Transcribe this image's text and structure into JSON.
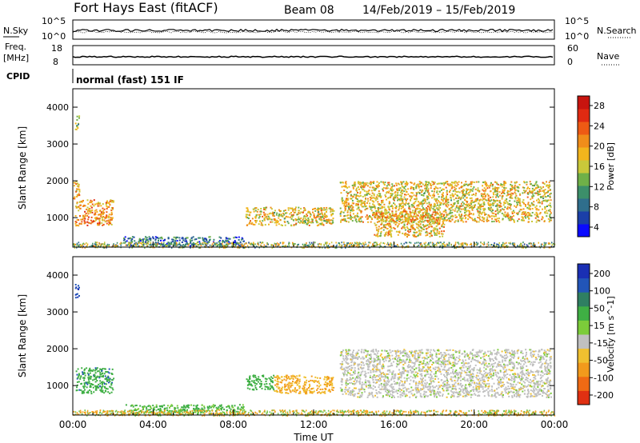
{
  "header": {
    "title": "Fort Hays East (fitACF)",
    "beam": "Beam 08",
    "date_range": "14/Feb/2019 – 15/Feb/2019"
  },
  "strips": {
    "nsky_label": "N.Sky",
    "nsky_ticks": [
      "10^5",
      "10^0"
    ],
    "nsearch_label": "N.Search",
    "nsearch_ticks": [
      "10^5",
      "10^0"
    ],
    "freq_label": [
      "Freq.",
      "[MHz]"
    ],
    "freq_ticks": [
      "18",
      "8"
    ],
    "nave_label": "Nave",
    "nave_ticks": [
      "60",
      "0"
    ],
    "cpid_label": "CPID",
    "cpid_text": "normal (fast) 151 IF"
  },
  "colors": {
    "power": [
      "#0a0aff",
      "#1b3fa8",
      "#2f6e8c",
      "#3c8f6a",
      "#6fb048",
      "#c9c83a",
      "#f2b51d",
      "#f08d1a",
      "#ee5a14",
      "#e02a12",
      "#c8140f"
    ],
    "velocity": [
      "#1a2fb4",
      "#2255b8",
      "#2f7f62",
      "#3faf44",
      "#7ccc3a",
      "#c0c0c0",
      "#f0c030",
      "#f29a1c",
      "#ef6a14",
      "#e03012"
    ],
    "scatter_green": "#6fc24a",
    "scatter_orange": "#f2a21c",
    "scatter_gray": "#c2c2c2"
  },
  "chart_data": [
    {
      "type": "heatmap",
      "name": "Power",
      "xlabel": "",
      "ylabel": "Slant Range [km]",
      "ylim": [
        200,
        4500
      ],
      "yticks": [
        "1000",
        "2000",
        "3000",
        "4000"
      ],
      "xlim_hours": [
        0,
        24
      ],
      "colorbar_label": "Power [dB]",
      "colorbar_ticks": [
        "28",
        "24",
        "20",
        "16",
        "12",
        "8",
        "4"
      ],
      "colorbar_range": [
        0,
        32
      ],
      "regions": [
        {
          "t_start": 0.1,
          "t_end": 2.0,
          "range_low": 800,
          "range_high": 1500,
          "power_db": 22
        },
        {
          "t_start": 0.0,
          "t_end": 0.3,
          "range_low": 1500,
          "range_high": 2000,
          "power_db": 20
        },
        {
          "t_start": 0.1,
          "t_end": 0.3,
          "range_low": 3400,
          "range_high": 3800,
          "power_db": 14
        },
        {
          "t_start": 8.6,
          "t_end": 13.0,
          "range_low": 800,
          "range_high": 1300,
          "power_db": 18
        },
        {
          "t_start": 13.3,
          "t_end": 23.8,
          "range_low": 900,
          "range_high": 2000,
          "power_db": 18
        },
        {
          "t_start": 15.0,
          "t_end": 18.5,
          "range_low": 500,
          "range_high": 1200,
          "power_db": 20
        },
        {
          "t_start": 2.5,
          "t_end": 8.5,
          "range_low": 250,
          "range_high": 500,
          "power_db": 6
        }
      ]
    },
    {
      "type": "heatmap",
      "name": "Velocity",
      "xlabel": "Time UT",
      "ylabel": "Slant Range [km]",
      "ylim": [
        200,
        4500
      ],
      "yticks": [
        "1000",
        "2000",
        "3000",
        "4000"
      ],
      "xlim_hours": [
        0,
        24
      ],
      "xticks": [
        "00:00",
        "04:00",
        "08:00",
        "12:00",
        "16:00",
        "20:00",
        "00:00"
      ],
      "colorbar_label": "Velocity [m s^-1]",
      "colorbar_ticks": [
        "200",
        "100",
        "50",
        "15",
        "-15",
        "-50",
        "-100",
        "-200"
      ],
      "regions": [
        {
          "t_start": 0.1,
          "t_end": 2.0,
          "range_low": 800,
          "range_high": 1500,
          "velocity": 60
        },
        {
          "t_start": 0.1,
          "t_end": 0.3,
          "range_low": 3400,
          "range_high": 3800,
          "velocity": 150
        },
        {
          "t_start": 8.6,
          "t_end": 10.0,
          "range_low": 900,
          "range_high": 1300,
          "velocity": 50
        },
        {
          "t_start": 10.0,
          "t_end": 13.0,
          "range_low": 800,
          "range_high": 1300,
          "velocity": -50
        },
        {
          "t_start": 13.3,
          "t_end": 23.8,
          "range_low": 700,
          "range_high": 2000,
          "velocity": 0
        },
        {
          "t_start": 2.5,
          "t_end": 8.5,
          "range_low": 250,
          "range_high": 500,
          "velocity": 40
        }
      ]
    }
  ]
}
